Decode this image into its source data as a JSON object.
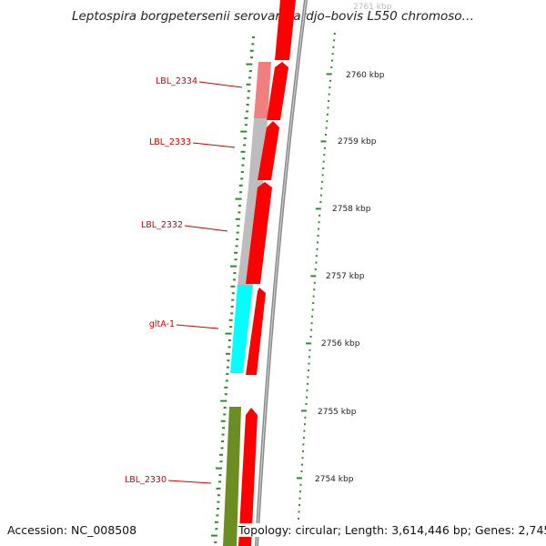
{
  "title": "Leptospira borgpetersenii serovar Hardjo–bovis L550 chromoso…",
  "footer": {
    "accession": "Accession: NC_008508",
    "topology": "Topology: circular; Length: 3,614,446 bp; Genes: 2,745"
  },
  "colors": {
    "cds": "#ff0000",
    "gene_label": "#cc0000",
    "backbone": "#888888",
    "gc_ticks": "#2e8b2e",
    "pink_feature": "#f08080",
    "gray_feature": "#bdbdbd",
    "cyan_feature": "#00ffff",
    "olive_feature": "#6b8e23"
  },
  "gene_labels": [
    {
      "name": "LBL_2334"
    },
    {
      "name": "LBL_2333"
    },
    {
      "name": "LBL_2332"
    },
    {
      "name": "gltA-1"
    },
    {
      "name": "LBL_2330"
    }
  ],
  "scale_labels": [
    {
      "text": "2761 kbp"
    },
    {
      "text": "2760 kbp"
    },
    {
      "text": "2759 kbp"
    },
    {
      "text": "2758 kbp"
    },
    {
      "text": "2757 kbp"
    },
    {
      "text": "2756 kbp"
    },
    {
      "text": "2755 kbp"
    },
    {
      "text": "2754 kbp"
    }
  ]
}
